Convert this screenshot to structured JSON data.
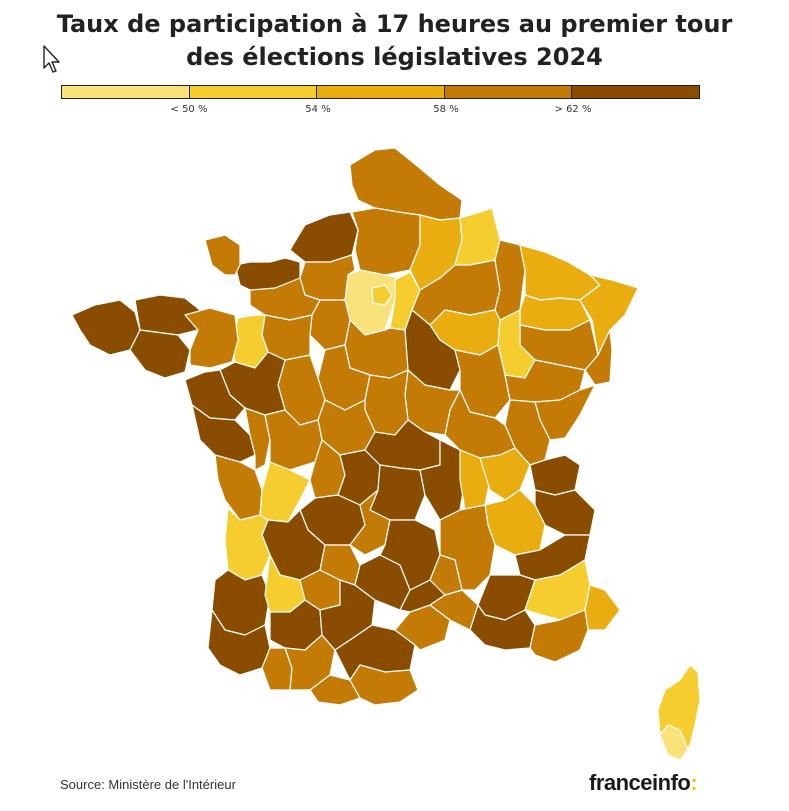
{
  "title_line1": "Taux de participation à 17 heures au premier tour",
  "title_line2": "des élections législatives 2024",
  "legend": {
    "colors": [
      "#f9e27a",
      "#f5cd2e",
      "#e9ad10",
      "#c47b05",
      "#8a4d00"
    ],
    "labels": [
      "< 50 %",
      "54 %",
      "58 %",
      "> 62 %"
    ]
  },
  "source": "Source: Ministère de l'Intérieur",
  "brand": {
    "name": "franceinfo",
    "suffix": ":",
    "accent": "#f0c41c"
  },
  "map": {
    "region_shown": "France métropolitaine et Corse",
    "border_color": "#ffffff"
  }
}
